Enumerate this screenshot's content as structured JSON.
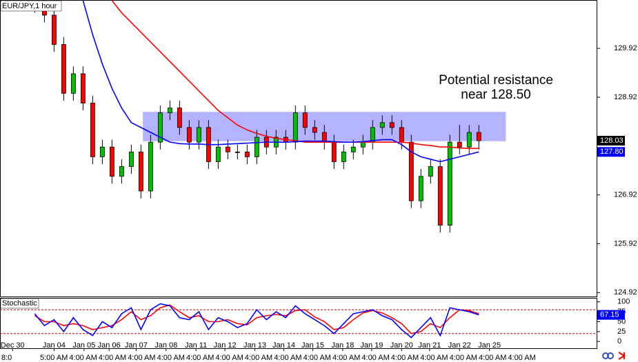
{
  "chart_data": {
    "type": "candlestick",
    "title": "EUR/JPY,1 hour",
    "annotation": [
      "Potential resistance",
      "near 128.50"
    ],
    "xlim": [
      -3.6,
      58.2
    ],
    "ylim": [
      124.84,
      130.91
    ],
    "yticks": [
      129.92,
      128.92,
      126.92,
      125.92,
      124.92
    ],
    "xticks": [
      {
        "value": -2.3,
        "label": "Dec 30"
      },
      {
        "value": 2,
        "label": "Jan 04"
      },
      {
        "value": 5.1,
        "label": "Jan 05"
      },
      {
        "value": 7.7,
        "label": "Jan 06"
      },
      {
        "value": 10.5,
        "label": "Jan 07"
      },
      {
        "value": 13.6,
        "label": "Jan 08"
      },
      {
        "value": 16.7,
        "label": "Jan 11"
      },
      {
        "value": 19.7,
        "label": "Jan 12"
      },
      {
        "value": 22.8,
        "label": "Jan 13"
      },
      {
        "value": 25.8,
        "label": "Jan 14"
      },
      {
        "value": 28.8,
        "label": "Jan 15"
      },
      {
        "value": 31.9,
        "label": "Jan 18"
      },
      {
        "value": 34.9,
        "label": "Jan 19"
      },
      {
        "value": 38,
        "label": "Jan 20"
      },
      {
        "value": 40.9,
        "label": "Jan 21"
      },
      {
        "value": 44,
        "label": "Jan 22"
      },
      {
        "value": 47.1,
        "label": "Jan 25"
      }
    ],
    "time_labels": [
      "8:0",
      "5:00 AM",
      "4:00 AM",
      "4:00 AM",
      "4:00 AM",
      "4:00 AM",
      "4:00 AM",
      "4:00 AM",
      "4:00 AM",
      "4:00 AM",
      "4:00 AM",
      "4:00 AM",
      "4:00 AM",
      "4:00 AM",
      "4:00 AM",
      "4:00 AM",
      "4:00 AM",
      "4:00 AM"
    ],
    "up_color": "#00c000",
    "down_color": "#ff0000",
    "open": [
      130.9,
      130.8,
      130.6,
      130.0,
      129.0,
      129.4,
      128.8,
      127.7,
      127.9,
      127.3,
      127.5,
      127.8,
      127.0,
      128.0,
      128.6,
      128.7,
      128.3,
      128.0,
      128.3,
      127.6,
      127.9,
      127.8,
      127.8,
      127.7,
      128.1,
      127.9,
      128.1,
      128.0,
      128.6,
      128.3,
      128.2,
      128.0,
      127.6,
      127.8,
      127.9,
      128.0,
      128.3,
      128.4,
      128.3,
      128.0,
      126.8,
      127.3,
      127.5,
      126.3,
      128.0,
      127.9,
      128.2
    ],
    "close": [
      130.8,
      130.6,
      130.0,
      129.0,
      129.4,
      128.8,
      127.7,
      127.9,
      127.3,
      127.5,
      127.8,
      127.0,
      128.0,
      128.6,
      128.7,
      128.3,
      128.0,
      128.3,
      127.6,
      127.9,
      127.8,
      127.8,
      127.7,
      128.1,
      127.9,
      128.1,
      128.0,
      128.6,
      128.3,
      128.2,
      128.0,
      127.6,
      127.8,
      127.9,
      128.0,
      128.3,
      128.4,
      128.3,
      128.0,
      126.8,
      127.3,
      127.5,
      126.3,
      128.0,
      127.9,
      128.2,
      128.03
    ],
    "high": [
      131.0,
      130.95,
      130.75,
      130.15,
      129.55,
      129.55,
      128.95,
      128.05,
      128.05,
      127.65,
      127.95,
      127.95,
      128.15,
      128.75,
      128.85,
      128.85,
      128.45,
      128.45,
      128.45,
      128.05,
      128.05,
      127.95,
      127.95,
      128.25,
      128.25,
      128.25,
      128.25,
      128.75,
      128.75,
      128.45,
      128.35,
      128.15,
      127.95,
      128.05,
      128.15,
      128.45,
      128.55,
      128.55,
      128.45,
      128.15,
      127.45,
      127.65,
      127.65,
      128.15,
      128.35,
      128.35,
      128.35
    ],
    "low": [
      130.65,
      130.45,
      129.85,
      128.85,
      128.85,
      128.65,
      127.55,
      127.55,
      127.15,
      127.15,
      127.35,
      126.85,
      126.85,
      127.85,
      128.45,
      128.15,
      127.85,
      127.85,
      127.45,
      127.45,
      127.65,
      127.65,
      127.55,
      127.55,
      127.75,
      127.75,
      127.85,
      127.85,
      128.15,
      128.05,
      127.85,
      127.45,
      127.45,
      127.65,
      127.75,
      127.85,
      128.15,
      128.15,
      127.85,
      126.65,
      126.65,
      127.15,
      126.15,
      126.15,
      127.75,
      127.75,
      127.85
    ],
    "ma_fast": {
      "color": "#0000ff",
      "values": [
        null,
        null,
        null,
        null,
        null,
        130.9,
        130.2,
        129.6,
        129.1,
        128.7,
        128.4,
        128.3,
        128.2,
        128.1,
        128.0,
        127.97,
        127.96,
        127.96,
        127.95,
        127.95,
        127.96,
        127.97,
        127.98,
        127.99,
        128.0,
        128.0,
        128.0,
        128.01,
        128.02,
        128.02,
        128.02,
        128.01,
        128.0,
        128.0,
        128.01,
        128.03,
        128.05,
        128.05,
        127.95,
        127.8,
        127.7,
        127.65,
        127.6,
        127.65,
        127.7,
        127.75,
        127.8
      ]
    },
    "ma_slow": {
      "color": "#ff0000",
      "values": [
        null,
        null,
        null,
        null,
        null,
        null,
        null,
        null,
        130.9,
        130.65,
        130.45,
        130.25,
        130.05,
        129.85,
        129.65,
        129.45,
        129.25,
        129.05,
        128.85,
        128.65,
        128.5,
        128.35,
        128.25,
        128.18,
        128.12,
        128.08,
        128.05,
        128.03,
        128.0,
        128.0,
        128.0,
        128.0,
        128.0,
        128.0,
        128.0,
        128.0,
        128.0,
        128.0,
        128.0,
        127.98,
        127.95,
        127.93,
        127.9,
        127.9,
        127.88,
        127.87,
        127.87
      ]
    },
    "zone": {
      "from": 11.2,
      "to": 48.8,
      "low": 128.02,
      "high": 128.62,
      "color": "#9999ff"
    },
    "price_labels": [
      {
        "value": 128.03,
        "label": "128.03",
        "color": "#000000"
      },
      {
        "value": 127.8,
        "label": "127.80",
        "color": "#0000ff"
      }
    ],
    "stochastic": {
      "title": "Stochastic",
      "ylim": [
        -17,
        110
      ],
      "yticks": [
        100,
        75,
        50,
        25,
        0
      ],
      "levels": [
        80,
        20
      ],
      "main": {
        "color": "#0000ff",
        "values": [
          70,
          40,
          55,
          25,
          60,
          30,
          15,
          50,
          35,
          70,
          85,
          30,
          80,
          95,
          90,
          60,
          55,
          75,
          30,
          60,
          50,
          35,
          45,
          80,
          55,
          75,
          60,
          90,
          70,
          55,
          40,
          20,
          45,
          70,
          75,
          80,
          65,
          55,
          30,
          10,
          35,
          60,
          15,
          85,
          80,
          75,
          67.15
        ]
      },
      "signal": {
        "color": "#ff0000",
        "values": [
          65,
          50,
          50,
          40,
          45,
          40,
          30,
          35,
          40,
          55,
          75,
          55,
          65,
          85,
          92,
          75,
          60,
          65,
          50,
          50,
          55,
          45,
          42,
          60,
          65,
          68,
          65,
          78,
          80,
          62,
          50,
          30,
          35,
          55,
          72,
          78,
          72,
          60,
          45,
          20,
          25,
          45,
          35,
          60,
          80,
          78,
          70
        ]
      },
      "value_label": "67.15"
    }
  }
}
